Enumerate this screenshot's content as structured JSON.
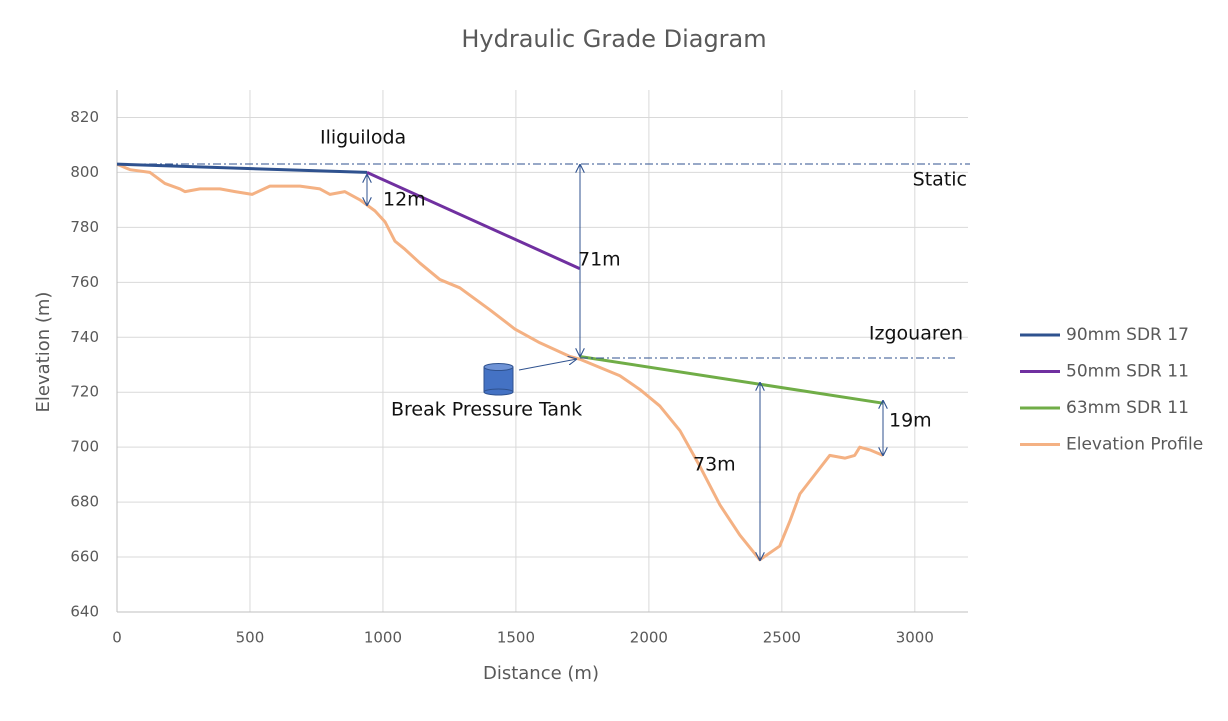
{
  "chart_data": {
    "type": "line",
    "title": "Hydraulic Grade Diagram",
    "x_label": "Distance (m)",
    "y_label": "Elevation (m)",
    "xlim": [
      0,
      3200
    ],
    "xticks": [
      0,
      500,
      1000,
      1500,
      2000,
      2500,
      3000
    ],
    "ylim": [
      640,
      830
    ],
    "yticks": [
      640,
      660,
      680,
      700,
      720,
      740,
      760,
      780,
      800,
      820
    ],
    "grid": true,
    "legend": "right",
    "series": [
      {
        "name": "90mm SDR 17",
        "color": "#2f528f",
        "x": [
          0,
          940
        ],
        "values": [
          803,
          800
        ]
      },
      {
        "name": "50mm SDR 11",
        "color": "#7030a0",
        "x": [
          940,
          1740
        ],
        "values": [
          800,
          765
        ]
      },
      {
        "name": "63mm SDR 11",
        "color": "#70ad47",
        "x": [
          1740,
          2880
        ],
        "values": [
          733,
          716
        ]
      },
      {
        "name": "Elevation Profile",
        "color": "#f4b183",
        "x": [
          0,
          49,
          124,
          180,
          237,
          256,
          312,
          387,
          444,
          508,
          575,
          688,
          763,
          801,
          857,
          914,
          970,
          1008,
          1045,
          1083,
          1139,
          1214,
          1289,
          1402,
          1496,
          1590,
          1703,
          1741,
          1816,
          1891,
          1966,
          2041,
          2117,
          2192,
          2267,
          2342,
          2417,
          2492,
          2530,
          2568,
          2624,
          2680,
          2737,
          2774,
          2793,
          2831,
          2880
        ],
        "values": [
          803,
          801,
          800,
          796,
          794,
          793,
          794,
          794,
          793,
          792,
          795,
          795,
          794,
          792,
          793,
          790,
          786,
          782,
          775,
          772,
          767,
          761,
          758,
          750,
          743,
          738,
          733,
          732,
          729,
          726,
          721,
          715,
          706,
          693,
          679,
          668,
          659,
          664,
          673,
          683,
          690,
          697,
          696,
          697,
          700,
          699,
          697
        ]
      }
    ],
    "annotations": [
      "Iliguiloda",
      "Static",
      "12m",
      "71m",
      "Izgouaren",
      "Break Pressure Tank",
      "73m",
      "19m"
    ]
  }
}
